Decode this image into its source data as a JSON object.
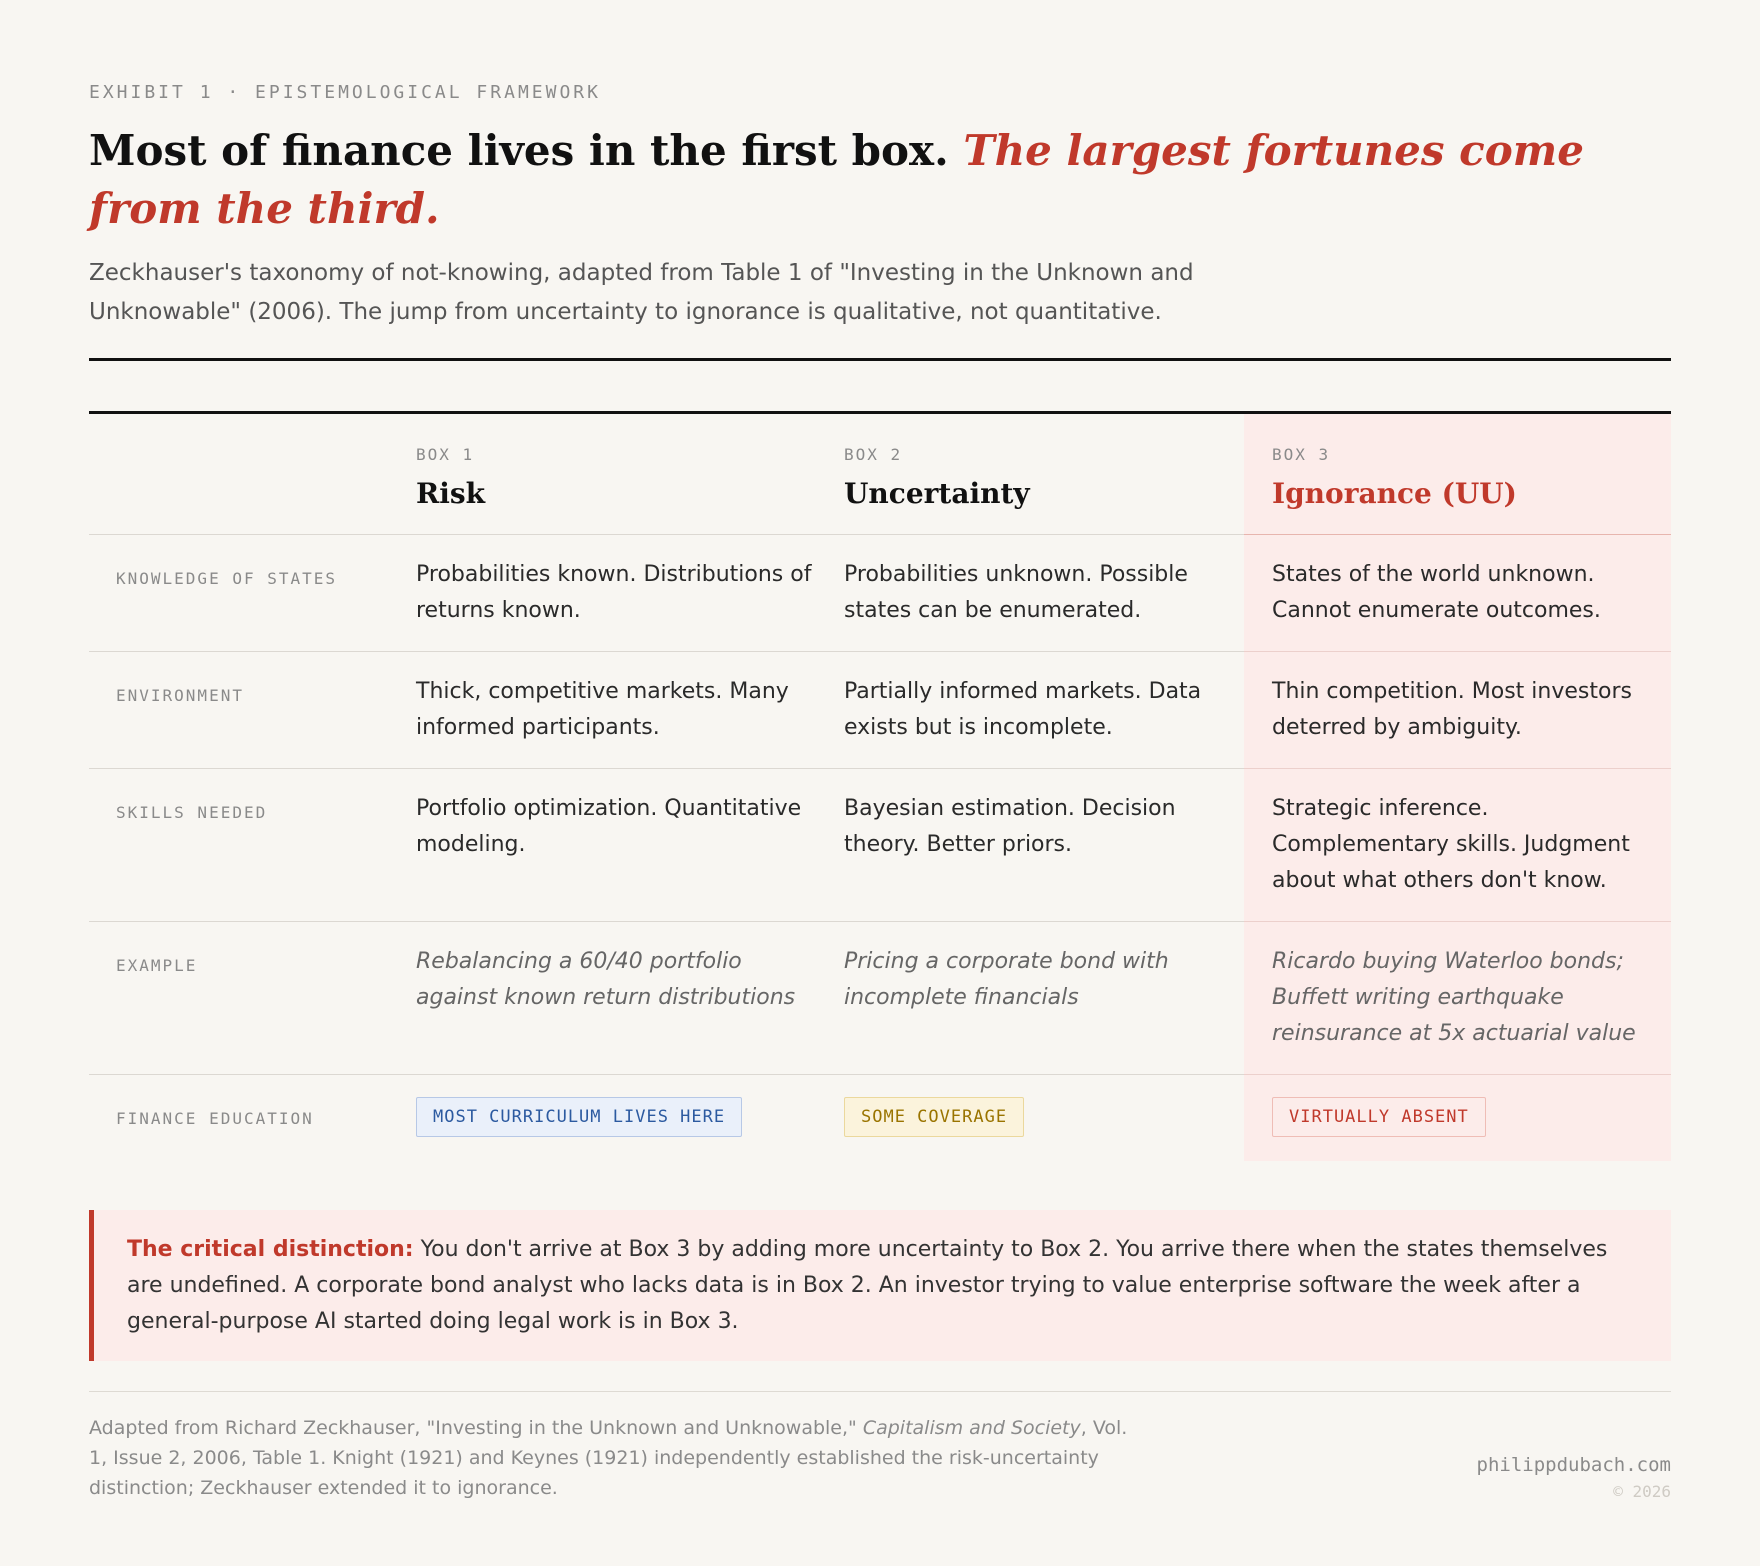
{
  "header": {
    "eyebrow": "EXHIBIT 1 · EPISTEMOLOGICAL FRAMEWORK",
    "title_main": "Most of finance lives in the first box.",
    "title_emphasis": "The largest fortunes come from the third.",
    "subtitle": "Zeckhauser's taxonomy of not-knowing, adapted from Table 1 of \"Investing in the Unknown and Unknowable\" (2006). The jump from uncertainty to ignorance is qualitative, not quantitative."
  },
  "table": {
    "columns": [
      {
        "label": "BOX 1",
        "title": "Risk"
      },
      {
        "label": "BOX 2",
        "title": "Uncertainty"
      },
      {
        "label": "BOX 3",
        "title": "Ignorance (UU)"
      }
    ],
    "rows": [
      {
        "label": "KNOWLEDGE OF STATES",
        "cells": [
          "Probabilities known. Distributions of returns known.",
          "Probabilities unknown. Possible states can be enumerated.",
          "States of the world unknown. Cannot enumerate outcomes."
        ]
      },
      {
        "label": "ENVIRONMENT",
        "cells": [
          "Thick, competitive markets. Many informed participants.",
          "Partially informed markets. Data exists but is incomplete.",
          "Thin competition. Most investors deterred by ambiguity."
        ]
      },
      {
        "label": "SKILLS NEEDED",
        "cells": [
          "Portfolio optimization. Quantitative modeling.",
          "Bayesian estimation. Decision theory. Better priors.",
          "Strategic inference. Complementary skills. Judgment about what others don't know."
        ]
      },
      {
        "label": "EXAMPLE",
        "cells": [
          "Rebalancing a 60/40 portfolio against known return distributions",
          "Pricing a corporate bond with incomplete financials",
          "Ricardo buying Waterloo bonds; Buffett writing earthquake reinsurance at 5x actuarial value"
        ]
      }
    ],
    "badge_row": {
      "label": "FINANCE EDUCATION",
      "badges": [
        "MOST CURRICULUM LIVES HERE",
        "SOME COVERAGE",
        "VIRTUALLY ABSENT"
      ]
    }
  },
  "callout": {
    "lead": "The critical distinction:",
    "text": "You don't arrive at Box 3 by adding more uncertainty to Box 2. You arrive there when the states themselves are undefined. A corporate bond analyst who lacks data is in Box 2. An investor trying to value enterprise software the week after a general-purpose AI started doing legal work is in Box 3."
  },
  "footer": {
    "source_start": "Adapted from Richard Zeckhauser, \"Investing in the Unknown and Unknowable,\" ",
    "source_journal": "Capitalism and Society",
    "source_end": ", Vol. 1, Issue 2, 2006, Table 1. Knight (1921) and Keynes (1921) independently established the risk-uncertainty distinction; Zeckhauser extended it to ignorance.",
    "site": "philippdubach.com",
    "copyright": "© 2026"
  }
}
